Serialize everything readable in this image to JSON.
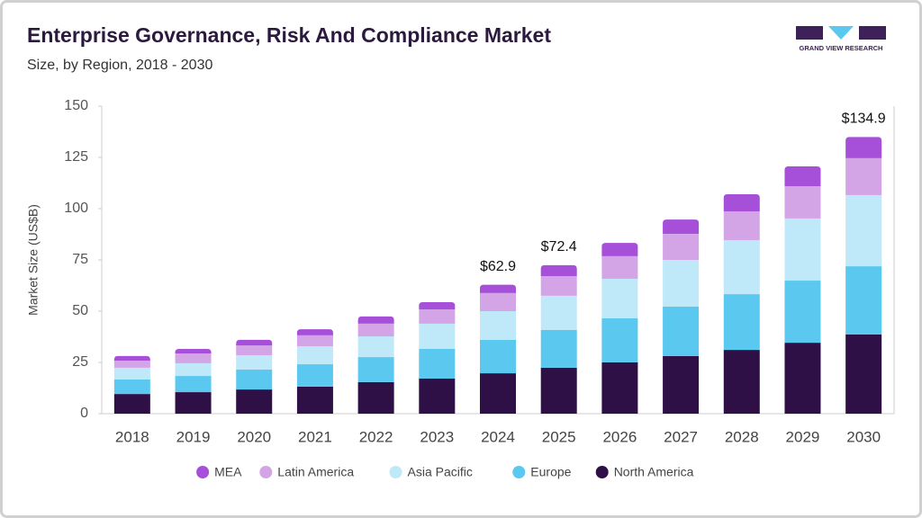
{
  "chart_data": {
    "type": "stacked_bar",
    "title": "Enterprise Governance, Risk And Compliance Market",
    "subtitle": "Size, by Region, 2018 - 2030",
    "logo_text": "GRAND VIEW RESEARCH",
    "y_label": "Market Size (US$B)",
    "categories": [
      "2018",
      "2019",
      "2020",
      "2021",
      "2022",
      "2023",
      "2024",
      "2025",
      "2026",
      "2027",
      "2028",
      "2029",
      "2030"
    ],
    "series": [
      {
        "name": "North America",
        "color": "#2e1046",
        "values": [
          9.6,
          10.5,
          11.8,
          13.2,
          15.4,
          17.1,
          19.7,
          22.4,
          25.0,
          28.1,
          31.1,
          34.6,
          38.6
        ]
      },
      {
        "name": "Europe",
        "color": "#5bc8f0",
        "values": [
          7.1,
          7.9,
          9.7,
          10.9,
          12.2,
          14.5,
          16.3,
          18.4,
          21.5,
          24.1,
          27.2,
          30.3,
          33.3
        ]
      },
      {
        "name": "Asia Pacific",
        "color": "#bfe8f8",
        "values": [
          5.7,
          6.2,
          7.0,
          8.8,
          10.1,
          12.3,
          14.0,
          16.7,
          19.3,
          22.8,
          26.3,
          30.3,
          34.7
        ]
      },
      {
        "name": "Latin America",
        "color": "#d4a5e6",
        "values": [
          3.5,
          4.8,
          4.8,
          5.3,
          6.2,
          7.0,
          8.8,
          9.6,
          11.0,
          12.7,
          14.1,
          15.7,
          18.0
        ]
      },
      {
        "name": "MEA",
        "color": "#a64fd9",
        "values": [
          2.2,
          2.2,
          2.7,
          3.0,
          3.5,
          3.5,
          4.1,
          5.3,
          6.5,
          7.0,
          8.3,
          9.7,
          10.3
        ]
      }
    ],
    "totals": [
      null,
      null,
      null,
      null,
      null,
      null,
      62.9,
      72.4,
      null,
      null,
      null,
      null,
      134.9
    ],
    "total_labels": [
      null,
      null,
      null,
      null,
      null,
      null,
      "$62.9",
      "$72.4",
      null,
      null,
      null,
      null,
      "$134.9"
    ],
    "ylim": [
      0,
      150
    ],
    "yticks": [
      0,
      25,
      50,
      75,
      100,
      125,
      150
    ],
    "grid": false
  }
}
